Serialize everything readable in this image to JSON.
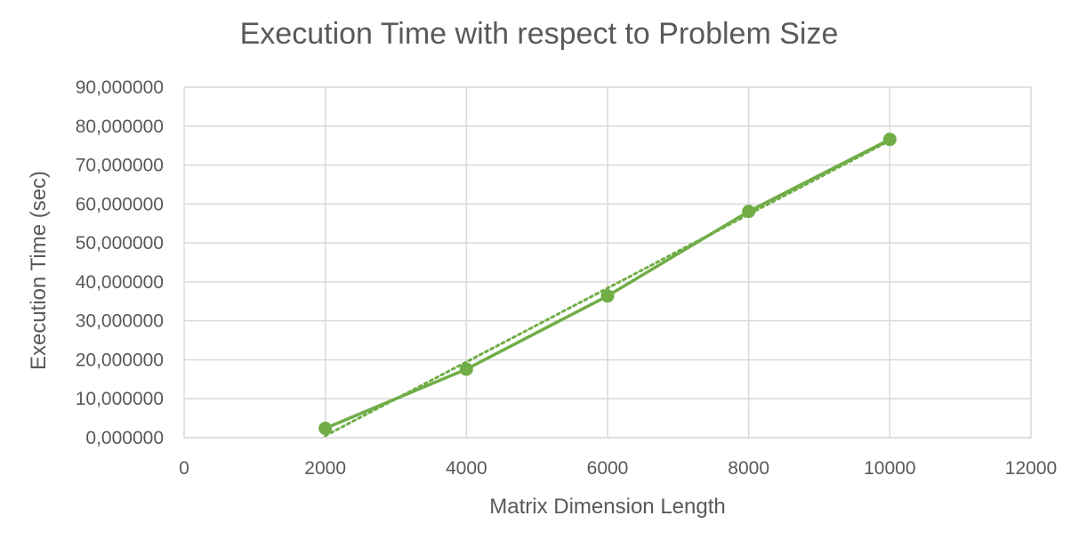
{
  "chart_data": {
    "type": "scatter",
    "title": "Execution Time with respect to Problem Size",
    "xlabel": "Matrix Dimension Length",
    "ylabel": "Execution Time (sec)",
    "xlim": [
      0,
      12000
    ],
    "ylim": [
      0,
      90
    ],
    "x_ticks": [
      0,
      2000,
      4000,
      6000,
      8000,
      10000,
      12000
    ],
    "x_tick_labels": [
      "0",
      "2000",
      "4000",
      "6000",
      "8000",
      "10000",
      "12000"
    ],
    "y_ticks": [
      0,
      10,
      20,
      30,
      40,
      50,
      60,
      70,
      80,
      90
    ],
    "y_tick_labels": [
      "0,000000",
      "10,000000",
      "20,000000",
      "30,000000",
      "40,000000",
      "50,000000",
      "60,000000",
      "70,000000",
      "80,000000",
      "90,000000"
    ],
    "grid": true,
    "legend": "none",
    "series": [
      {
        "style": "solid line with circle markers",
        "color": "#70ad47",
        "x": [
          2000,
          4000,
          6000,
          8000,
          10000
        ],
        "y": [
          2.4,
          17.6,
          36.4,
          58.1,
          76.6
        ]
      }
    ],
    "trendline": {
      "type": "linear",
      "style": "dotted",
      "color": "#70ad47",
      "x": [
        2000,
        10000
      ],
      "y": [
        0.5,
        76.3
      ]
    }
  }
}
